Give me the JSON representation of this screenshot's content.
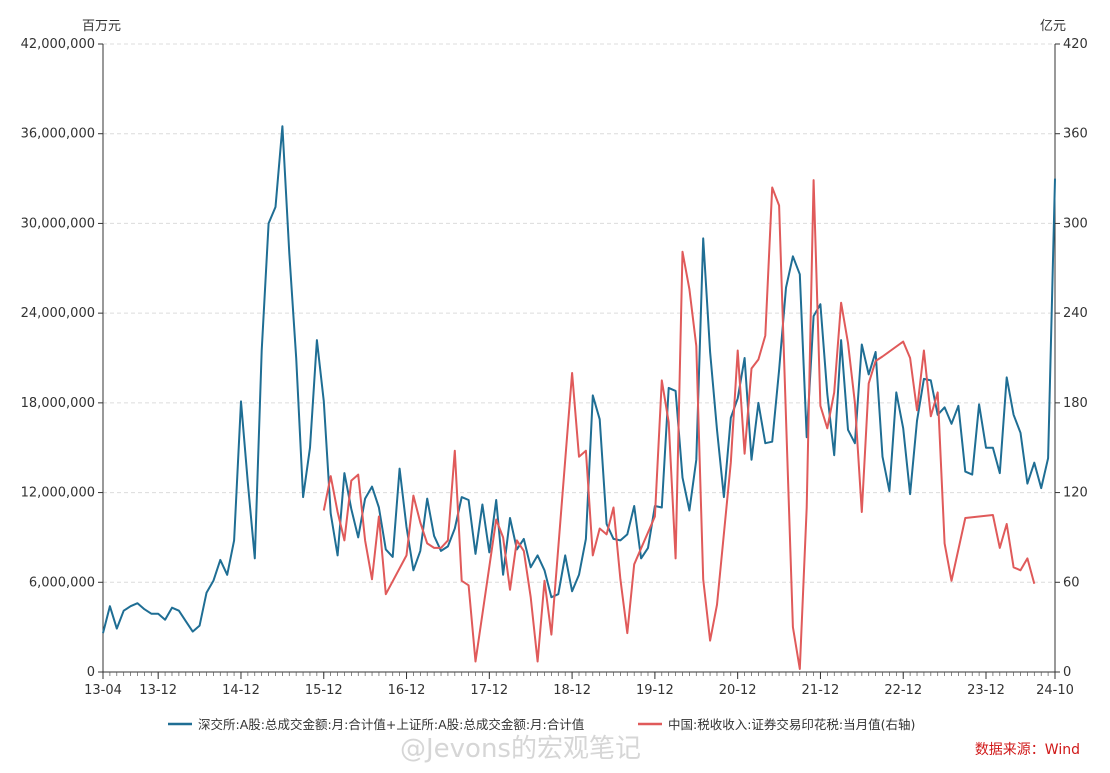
{
  "chart_data": {
    "type": "line",
    "left_axis_unit": "百万元",
    "right_axis_unit": "亿元",
    "left_ylim": [
      0,
      42000000
    ],
    "right_ylim": [
      0,
      420
    ],
    "left_ticks": [
      "0",
      "6,000,000",
      "12,000,000",
      "18,000,000",
      "24,000,000",
      "30,000,000",
      "36,000,000",
      "42,000,000"
    ],
    "right_ticks": [
      "0",
      "60",
      "120",
      "180",
      "240",
      "300",
      "360",
      "420"
    ],
    "x_ticks": [
      "13-04",
      "13-12",
      "14-12",
      "15-12",
      "16-12",
      "17-12",
      "18-12",
      "19-12",
      "20-12",
      "21-12",
      "22-12",
      "23-12",
      "24-10"
    ],
    "grid": "horizontal-dashed",
    "legend_position": "bottom",
    "series": [
      {
        "name": "深交所:A股:总成交金额:月:合计值+上证所:A股:总成交金额:月:合计值",
        "axis": "left",
        "color": "#1f6e94",
        "start": "2013-04",
        "values": [
          2.6,
          4.4,
          2.9,
          4.1,
          4.4,
          4.6,
          4.2,
          3.9,
          3.9,
          3.5,
          4.3,
          4.1,
          3.4,
          2.7,
          3.1,
          5.3,
          6.1,
          7.5,
          6.5,
          8.8,
          18.1,
          12.6,
          7.6,
          21.5,
          30.0,
          31.1,
          36.5,
          28.0,
          21.0,
          11.7,
          15.0,
          22.2,
          18.1,
          10.6,
          7.8,
          13.3,
          10.9,
          9.0,
          11.6,
          12.4,
          11.0,
          8.2,
          7.7,
          13.6,
          9.7,
          6.8,
          8.1,
          11.6,
          9.1,
          8.1,
          8.4,
          9.6,
          11.7,
          11.5,
          7.9,
          11.2,
          8.0,
          11.5,
          6.5,
          10.3,
          8.2,
          8.9,
          7.0,
          7.8,
          6.8,
          5.0,
          5.2,
          7.8,
          5.4,
          6.5,
          8.9,
          18.5,
          16.9,
          9.9,
          8.9,
          8.8,
          9.2,
          11.1,
          7.6,
          8.3,
          11.1,
          11.0,
          19.0,
          18.8,
          13.0,
          10.8,
          14.2,
          29.0,
          21.4,
          16.2,
          11.7,
          17.0,
          18.3,
          21.0,
          14.2,
          18.0,
          15.3,
          15.4,
          20.2,
          25.7,
          27.8,
          26.6,
          15.7,
          23.8,
          24.6,
          18.6,
          14.5,
          22.2,
          16.2,
          15.3,
          21.9,
          19.9,
          21.4,
          14.4,
          12.1,
          18.7,
          16.3,
          11.9,
          16.8,
          19.6,
          19.5,
          17.2,
          17.7,
          16.6,
          17.8,
          13.4,
          13.2,
          17.9,
          15.0,
          15.0,
          13.3,
          19.7,
          17.2,
          16.0,
          12.6,
          14.0,
          12.3,
          14.3,
          33.0
        ]
      },
      {
        "name": "中国:税收收入:证券交易印花税:当月值(右轴)",
        "axis": "right",
        "color": "#e05a5a",
        "points": [
          [
            "2015-12",
            108
          ],
          [
            "2016-01",
            131
          ],
          [
            "2016-02",
            107
          ],
          [
            "2016-03",
            88
          ],
          [
            "2016-04",
            128
          ],
          [
            "2016-05",
            132
          ],
          [
            "2016-06",
            88
          ],
          [
            "2016-07",
            62
          ],
          [
            "2016-08",
            104
          ],
          [
            "2016-09",
            52
          ],
          [
            "2016-12",
            78
          ],
          [
            "2017-01",
            118
          ],
          [
            "2017-02",
            100
          ],
          [
            "2017-03",
            86
          ],
          [
            "2017-04",
            83
          ],
          [
            "2017-05",
            83
          ],
          [
            "2017-06",
            88
          ],
          [
            "2017-07",
            148
          ],
          [
            "2017-08",
            61
          ],
          [
            "2017-09",
            58
          ],
          [
            "2017-10",
            7
          ],
          [
            "2018-01",
            102
          ],
          [
            "2018-02",
            90
          ],
          [
            "2018-03",
            55
          ],
          [
            "2018-04",
            88
          ],
          [
            "2018-05",
            81
          ],
          [
            "2018-06",
            50
          ],
          [
            "2018-07",
            7
          ],
          [
            "2018-08",
            61
          ],
          [
            "2018-09",
            25
          ],
          [
            "2018-12",
            200
          ],
          [
            "2019-01",
            144
          ],
          [
            "2019-02",
            148
          ],
          [
            "2019-03",
            78
          ],
          [
            "2019-04",
            96
          ],
          [
            "2019-05",
            92
          ],
          [
            "2019-06",
            110
          ],
          [
            "2019-07",
            62
          ],
          [
            "2019-08",
            26
          ],
          [
            "2019-09",
            72
          ],
          [
            "2019-12",
            104
          ],
          [
            "2020-01",
            195
          ],
          [
            "2020-02",
            167
          ],
          [
            "2020-03",
            76
          ],
          [
            "2020-04",
            281
          ],
          [
            "2020-05",
            256
          ],
          [
            "2020-06",
            218
          ],
          [
            "2020-07",
            62
          ],
          [
            "2020-08",
            21
          ],
          [
            "2020-09",
            45
          ],
          [
            "2020-11",
            140
          ],
          [
            "2020-12",
            215
          ],
          [
            "2021-01",
            146
          ],
          [
            "2021-02",
            203
          ],
          [
            "2021-03",
            209
          ],
          [
            "2021-04",
            225
          ],
          [
            "2021-05",
            324
          ],
          [
            "2021-06",
            312
          ],
          [
            "2021-07",
            170
          ],
          [
            "2021-08",
            30
          ],
          [
            "2021-09",
            2
          ],
          [
            "2021-10",
            110
          ],
          [
            "2021-11",
            329
          ],
          [
            "2021-12",
            178
          ],
          [
            "2022-01",
            163
          ],
          [
            "2022-02",
            187
          ],
          [
            "2022-03",
            247
          ],
          [
            "2022-04",
            220
          ],
          [
            "2022-05",
            180
          ],
          [
            "2022-06",
            107
          ],
          [
            "2022-07",
            193
          ],
          [
            "2022-08",
            208
          ],
          [
            "2022-09",
            211
          ],
          [
            "2022-12",
            221
          ],
          [
            "2023-01",
            210
          ],
          [
            "2023-02",
            175
          ],
          [
            "2023-03",
            215
          ],
          [
            "2023-04",
            171
          ],
          [
            "2023-05",
            187
          ],
          [
            "2023-06",
            86
          ],
          [
            "2023-07",
            61
          ],
          [
            "2023-09",
            103
          ],
          [
            "2024-01",
            105
          ],
          [
            "2024-02",
            83
          ],
          [
            "2024-03",
            99
          ],
          [
            "2024-04",
            70
          ],
          [
            "2024-05",
            68
          ],
          [
            "2024-06",
            76
          ],
          [
            "2024-07",
            59
          ]
        ]
      }
    ]
  },
  "source_label": "数据来源：Wind",
  "watermark": "@Jevons的宏观笔记"
}
